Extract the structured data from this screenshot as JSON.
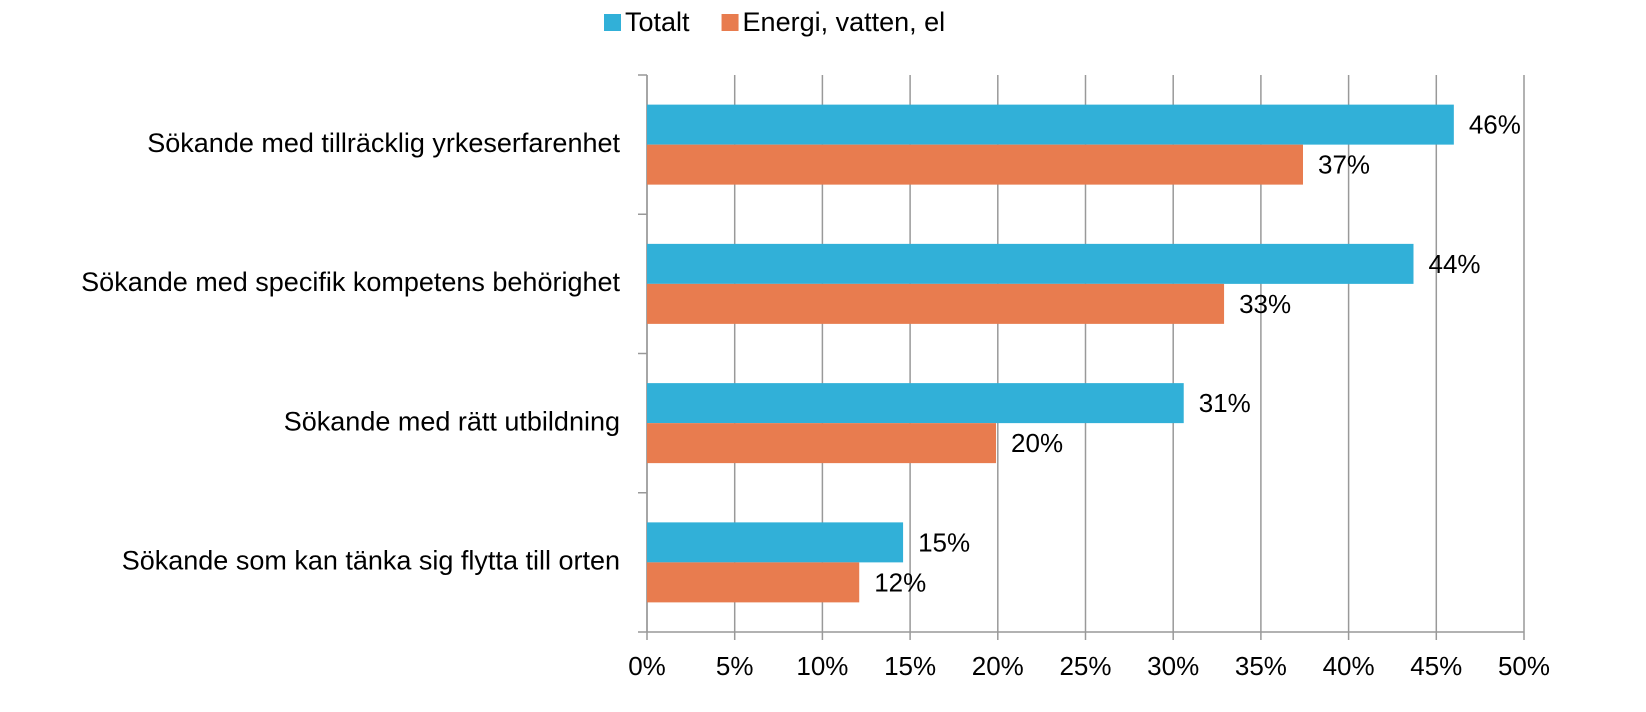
{
  "chart_data": {
    "type": "bar",
    "orientation": "horizontal",
    "categories": [
      "Sökande med tillräcklig yrkeserfarenhet",
      "Sökande med specifik kompetens behörighet",
      "Sökande med rätt utbildning",
      "Sökande som kan tänka sig flytta till orten"
    ],
    "series": [
      {
        "name": "Totalt",
        "color": "#31b0d8",
        "values": [
          46,
          43.7,
          30.6,
          14.6
        ],
        "value_labels": [
          "46%",
          "44%",
          "31%",
          "15%"
        ]
      },
      {
        "name": "Energi, vatten, el",
        "color": "#e87c4f",
        "values": [
          37.4,
          32.9,
          19.9,
          12.1
        ],
        "value_labels": [
          "37%",
          "33%",
          "20%",
          "12%"
        ]
      }
    ],
    "xlim": [
      0,
      50
    ],
    "xticks": [
      {
        "value": 0,
        "label": "0%"
      },
      {
        "value": 5,
        "label": "5%"
      },
      {
        "value": 10,
        "label": "10%"
      },
      {
        "value": 15,
        "label": "15%"
      },
      {
        "value": 20,
        "label": "20%"
      },
      {
        "value": 25,
        "label": "25%"
      },
      {
        "value": 30,
        "label": "30%"
      },
      {
        "value": 35,
        "label": "35%"
      },
      {
        "value": 40,
        "label": "40%"
      },
      {
        "value": 45,
        "label": "45%"
      },
      {
        "value": 50,
        "label": "50%"
      }
    ],
    "grid": true,
    "legend": "top"
  }
}
